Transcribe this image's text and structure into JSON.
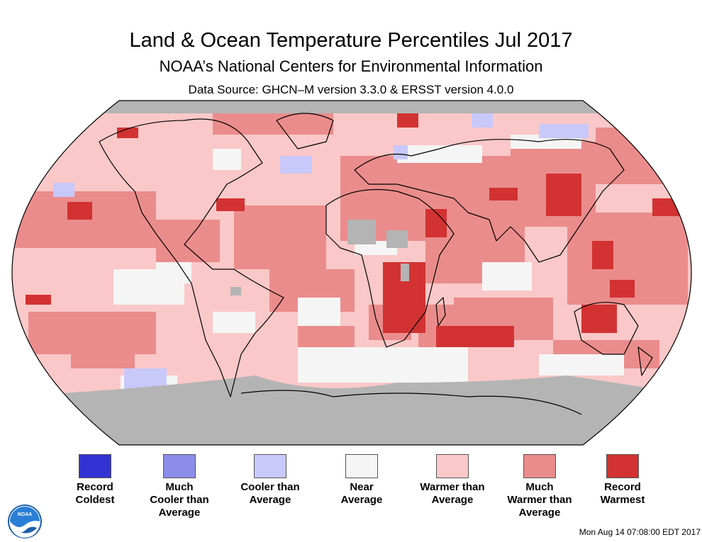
{
  "header": {
    "title": "Land & Ocean Temperature Percentiles Jul 2017",
    "subtitle": "NOAA’s National Centers for Environmental Information",
    "source": "Data Source: GHCN–M version 3.3.0 & ERSST version 4.0.0"
  },
  "map": {
    "projection": "robinson",
    "no_data_color": "#b4b4b4",
    "coastline_color": "#000000"
  },
  "legend": {
    "items": [
      {
        "label": "Record\nColdest",
        "color": "#3232d2"
      },
      {
        "label": "Much\nCooler than\nAverage",
        "color": "#8c8ceb"
      },
      {
        "label": "Cooler than\nAverage",
        "color": "#c8c8fa"
      },
      {
        "label": "Near\nAverage",
        "color": "#f5f5f5"
      },
      {
        "label": "Warmer than\nAverage",
        "color": "#fac8c8"
      },
      {
        "label": "Much\nWarmer than\nAverage",
        "color": "#eb8c8c"
      },
      {
        "label": "Record\nWarmest",
        "color": "#d23232"
      }
    ]
  },
  "logo": {
    "text": "NOAA",
    "icon": "noaa-logo-icon"
  },
  "footer": {
    "timestamp": "Mon Aug 14 07:08:00 EDT 2017"
  }
}
